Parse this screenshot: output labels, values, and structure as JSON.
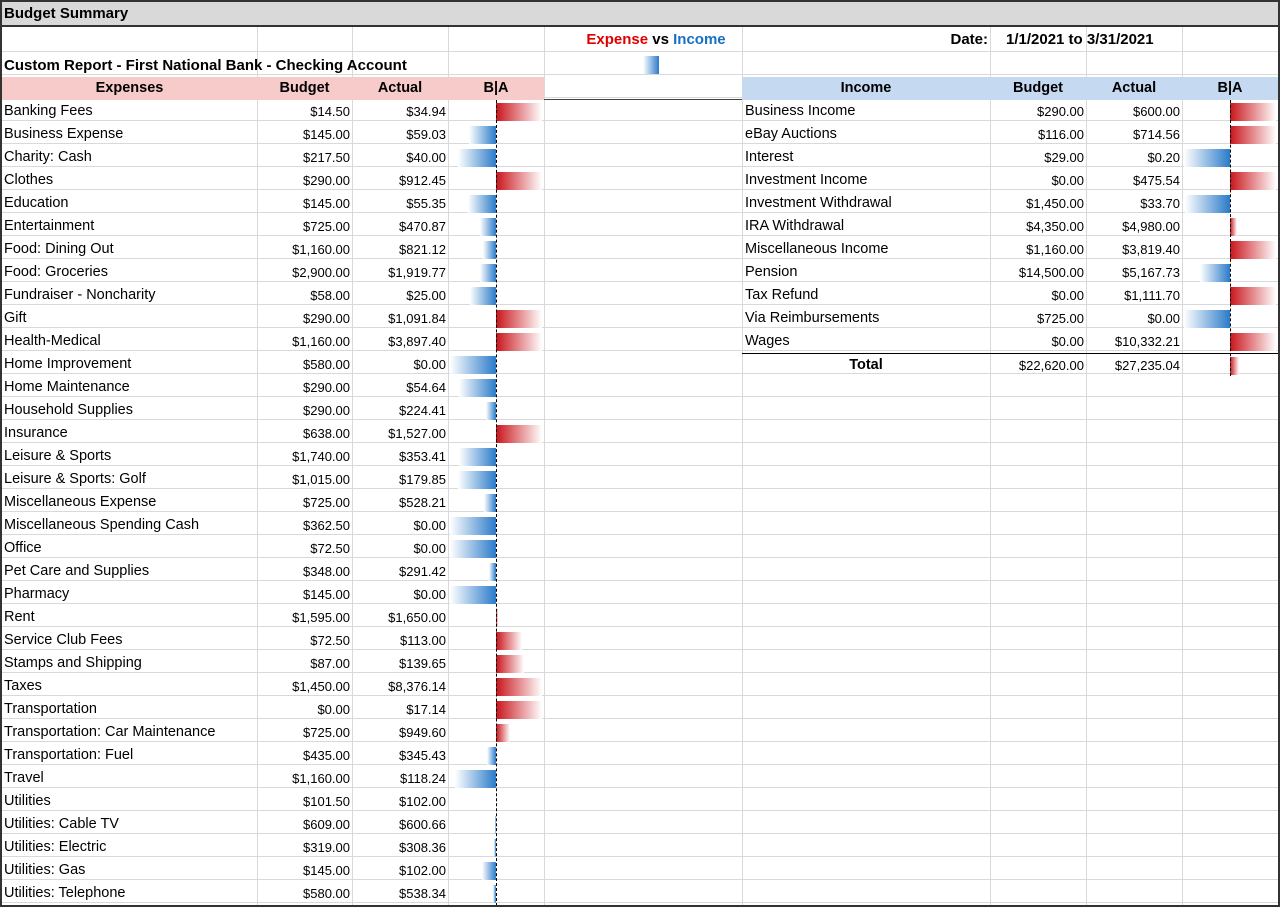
{
  "title": "Budget Summary",
  "subtitle": "Custom Report - First National Bank - Checking Account",
  "legend": {
    "expense": "Expense",
    "vs": "vs",
    "income": "Income"
  },
  "date": {
    "label": "Date:",
    "value": "1/1/2021 to 3/31/2021"
  },
  "colors": {
    "expense_header_bg": "#f8cbcb",
    "income_header_bg": "#c5d9f1",
    "positive_bar": "#c9151b",
    "negative_bar": "#2b7bc9"
  },
  "expenses": {
    "headers": {
      "category": "Expenses",
      "budget": "Budget",
      "actual": "Actual",
      "ba": "B|A"
    },
    "rows": [
      {
        "name": "Banking Fees",
        "budget": "$14.50",
        "actual": "$34.94",
        "bv": 14.5,
        "av": 34.94
      },
      {
        "name": "Business Expense",
        "budget": "$145.00",
        "actual": "$59.03",
        "bv": 145.0,
        "av": 59.03
      },
      {
        "name": "Charity: Cash",
        "budget": "$217.50",
        "actual": "$40.00",
        "bv": 217.5,
        "av": 40.0
      },
      {
        "name": "Clothes",
        "budget": "$290.00",
        "actual": "$912.45",
        "bv": 290.0,
        "av": 912.45
      },
      {
        "name": "Education",
        "budget": "$145.00",
        "actual": "$55.35",
        "bv": 145.0,
        "av": 55.35
      },
      {
        "name": "Entertainment",
        "budget": "$725.00",
        "actual": "$470.87",
        "bv": 725.0,
        "av": 470.87
      },
      {
        "name": "Food: Dining Out",
        "budget": "$1,160.00",
        "actual": "$821.12",
        "bv": 1160.0,
        "av": 821.12
      },
      {
        "name": "Food: Groceries",
        "budget": "$2,900.00",
        "actual": "$1,919.77",
        "bv": 2900.0,
        "av": 1919.77
      },
      {
        "name": "Fundraiser - Noncharity",
        "budget": "$58.00",
        "actual": "$25.00",
        "bv": 58.0,
        "av": 25.0
      },
      {
        "name": "Gift",
        "budget": "$290.00",
        "actual": "$1,091.84",
        "bv": 290.0,
        "av": 1091.84
      },
      {
        "name": "Health-Medical",
        "budget": "$1,160.00",
        "actual": "$3,897.40",
        "bv": 1160.0,
        "av": 3897.4
      },
      {
        "name": "Home Improvement",
        "budget": "$580.00",
        "actual": "$0.00",
        "bv": 580.0,
        "av": 0
      },
      {
        "name": "Home Maintenance",
        "budget": "$290.00",
        "actual": "$54.64",
        "bv": 290.0,
        "av": 54.64
      },
      {
        "name": "Household Supplies",
        "budget": "$290.00",
        "actual": "$224.41",
        "bv": 290.0,
        "av": 224.41
      },
      {
        "name": "Insurance",
        "budget": "$638.00",
        "actual": "$1,527.00",
        "bv": 638.0,
        "av": 1527.0
      },
      {
        "name": "Leisure & Sports",
        "budget": "$1,740.00",
        "actual": "$353.41",
        "bv": 1740.0,
        "av": 353.41
      },
      {
        "name": "Leisure & Sports: Golf",
        "budget": "$1,015.00",
        "actual": "$179.85",
        "bv": 1015.0,
        "av": 179.85
      },
      {
        "name": "Miscellaneous Expense",
        "budget": "$725.00",
        "actual": "$528.21",
        "bv": 725.0,
        "av": 528.21
      },
      {
        "name": "Miscellaneous Spending Cash",
        "budget": "$362.50",
        "actual": "$0.00",
        "bv": 362.5,
        "av": 0
      },
      {
        "name": "Office",
        "budget": "$72.50",
        "actual": "$0.00",
        "bv": 72.5,
        "av": 0
      },
      {
        "name": "Pet Care and Supplies",
        "budget": "$348.00",
        "actual": "$291.42",
        "bv": 348.0,
        "av": 291.42
      },
      {
        "name": "Pharmacy",
        "budget": "$145.00",
        "actual": "$0.00",
        "bv": 145.0,
        "av": 0
      },
      {
        "name": "Rent",
        "budget": "$1,595.00",
        "actual": "$1,650.00",
        "bv": 1595.0,
        "av": 1650.0
      },
      {
        "name": "Service Club Fees",
        "budget": "$72.50",
        "actual": "$113.00",
        "bv": 72.5,
        "av": 113.0
      },
      {
        "name": "Stamps and Shipping",
        "budget": "$87.00",
        "actual": "$139.65",
        "bv": 87.0,
        "av": 139.65
      },
      {
        "name": "Taxes",
        "budget": "$1,450.00",
        "actual": "$8,376.14",
        "bv": 1450.0,
        "av": 8376.14
      },
      {
        "name": "Transportation",
        "budget": "$0.00",
        "actual": "$17.14",
        "bv": 0,
        "av": 17.14
      },
      {
        "name": "Transportation: Car Maintenance",
        "budget": "$725.00",
        "actual": "$949.60",
        "bv": 725.0,
        "av": 949.6
      },
      {
        "name": "Transportation: Fuel",
        "budget": "$435.00",
        "actual": "$345.43",
        "bv": 435.0,
        "av": 345.43
      },
      {
        "name": "Travel",
        "budget": "$1,160.00",
        "actual": "$118.24",
        "bv": 1160.0,
        "av": 118.24
      },
      {
        "name": "Utilities",
        "budget": "$101.50",
        "actual": "$102.00",
        "bv": 101.5,
        "av": 102.0
      },
      {
        "name": "Utilities: Cable TV",
        "budget": "$609.00",
        "actual": "$600.66",
        "bv": 609.0,
        "av": 600.66
      },
      {
        "name": "Utilities: Electric",
        "budget": "$319.00",
        "actual": "$308.36",
        "bv": 319.0,
        "av": 308.36
      },
      {
        "name": "Utilities: Gas",
        "budget": "$145.00",
        "actual": "$102.00",
        "bv": 145.0,
        "av": 102.0
      },
      {
        "name": "Utilities: Telephone",
        "budget": "$580.00",
        "actual": "$538.34",
        "bv": 580.0,
        "av": 538.34
      }
    ]
  },
  "income": {
    "headers": {
      "category": "Income",
      "budget": "Budget",
      "actual": "Actual",
      "ba": "B|A"
    },
    "rows": [
      {
        "name": "Business Income",
        "budget": "$290.00",
        "actual": "$600.00",
        "bv": 290.0,
        "av": 600.0
      },
      {
        "name": "eBay Auctions",
        "budget": "$116.00",
        "actual": "$714.56",
        "bv": 116.0,
        "av": 714.56
      },
      {
        "name": "Interest",
        "budget": "$29.00",
        "actual": "$0.20",
        "bv": 29.0,
        "av": 0.2
      },
      {
        "name": "Investment Income",
        "budget": "$0.00",
        "actual": "$475.54",
        "bv": 0,
        "av": 475.54
      },
      {
        "name": "Investment Withdrawal",
        "budget": "$1,450.00",
        "actual": "$33.70",
        "bv": 1450.0,
        "av": 33.7
      },
      {
        "name": "IRA Withdrawal",
        "budget": "$4,350.00",
        "actual": "$4,980.00",
        "bv": 4350.0,
        "av": 4980.0
      },
      {
        "name": "Miscellaneous Income",
        "budget": "$1,160.00",
        "actual": "$3,819.40",
        "bv": 1160.0,
        "av": 3819.4
      },
      {
        "name": "Pension",
        "budget": "$14,500.00",
        "actual": "$5,167.73",
        "bv": 14500.0,
        "av": 5167.73
      },
      {
        "name": "Tax Refund",
        "budget": "$0.00",
        "actual": "$1,111.70",
        "bv": 0,
        "av": 1111.7
      },
      {
        "name": "Via Reimbursements",
        "budget": "$725.00",
        "actual": "$0.00",
        "bv": 725.0,
        "av": 0
      },
      {
        "name": "Wages",
        "budget": "$0.00",
        "actual": "$10,332.21",
        "bv": 0,
        "av": 10332.21
      }
    ],
    "total": {
      "label": "Total",
      "budget": "$22,620.00",
      "actual": "$27,235.04",
      "bv": 22620.0,
      "av": 27235.04
    }
  }
}
